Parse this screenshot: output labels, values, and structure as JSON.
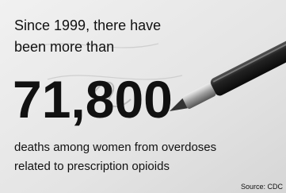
{
  "intro": [
    "Since 1999, there have",
    "been more than"
  ],
  "figure": "71,800",
  "description": [
    "deaths among women from overdoses",
    "related to prescription opioids"
  ],
  "source": "Source: CDC"
}
